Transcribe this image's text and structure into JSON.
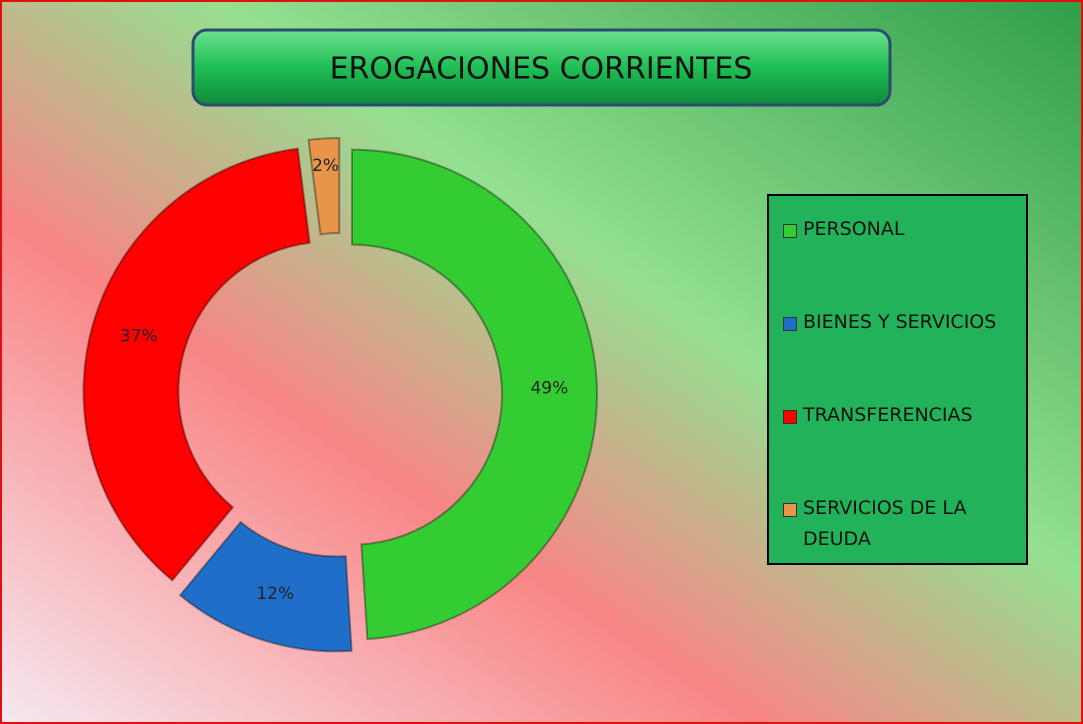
{
  "chart_data": {
    "type": "donut",
    "title": "EROGACIONES CORRIENTES",
    "categories": [
      "PERSONAL",
      "BIENES Y SERVICIOS",
      "TRANSFERENCIAS",
      "SERVICIOS DE LA DEUDA"
    ],
    "values": [
      49,
      12,
      37,
      2
    ],
    "value_labels": [
      "49%",
      "12%",
      "37%",
      "2%"
    ],
    "colors": [
      "#33cc33",
      "#1f6fc9",
      "#ff0000",
      "#e8944a"
    ],
    "legend": "right"
  }
}
